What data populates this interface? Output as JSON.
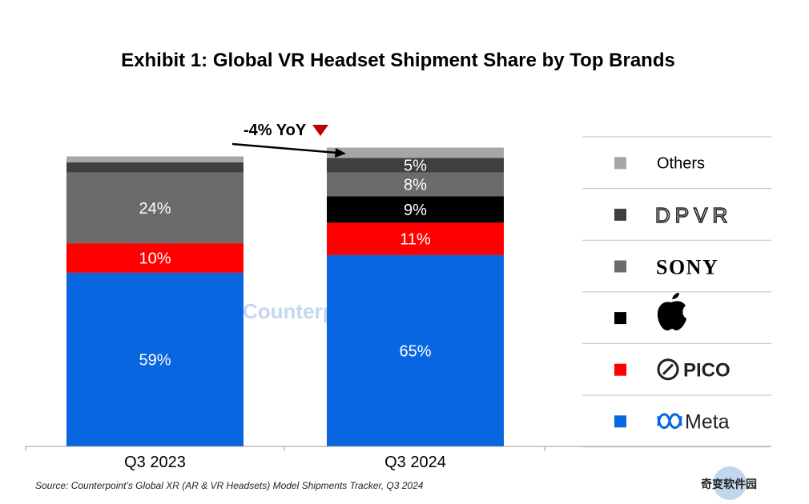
{
  "chart_data": {
    "type": "bar",
    "stacked": true,
    "title": "Exhibit 1: Global VR Headset Shipment Share by Top Brands",
    "categories": [
      "Q3 2023",
      "Q3 2024"
    ],
    "ylim": [
      0,
      100
    ],
    "series": [
      {
        "name": "Meta",
        "color": "#0866e0",
        "values": [
          59,
          65
        ],
        "labels": [
          "59%",
          "65%"
        ]
      },
      {
        "name": "PICO",
        "color": "#ff0000",
        "values": [
          10,
          11
        ],
        "labels": [
          "10%",
          "11%"
        ]
      },
      {
        "name": "Apple",
        "color": "#000000",
        "values": [
          0,
          9
        ],
        "labels": [
          "",
          "9%"
        ]
      },
      {
        "name": "SONY",
        "color": "#6b6b6b",
        "values": [
          24,
          8
        ],
        "labels": [
          "24%",
          "8%"
        ]
      },
      {
        "name": "DPVR",
        "color": "#3f3f3f",
        "values": [
          3.5,
          5
        ],
        "labels": [
          "",
          "5%"
        ]
      },
      {
        "name": "Others",
        "color": "#a6a6a6",
        "values": [
          2,
          3.5
        ],
        "labels": [
          "",
          ""
        ]
      }
    ],
    "legend": {
      "position": "right",
      "order": [
        "Others",
        "DPVR",
        "SONY",
        "Apple",
        "PICO",
        "Meta"
      ],
      "display": {
        "Others": "Others",
        "DPVR": "DPVR",
        "SONY": "SONY",
        "Apple": "",
        "PICO": "PICO",
        "Meta": "Meta"
      },
      "icons": {
        "DPVR": "dpvr-logo",
        "SONY": "sony-logo",
        "Apple": "apple-icon",
        "PICO": "pico-logo",
        "Meta": "meta-logo"
      }
    },
    "annotation": {
      "text": "-4% YoY",
      "icon": "down-triangle-icon",
      "color": "#c00000"
    },
    "grid": false
  },
  "source_note": "Source: Counterpoint’s Global XR (AR & VR Headsets) Model Shipments Tracker, Q3 2024",
  "watermark": "Counterpoint",
  "corner_logo_text": "奇变软件园"
}
